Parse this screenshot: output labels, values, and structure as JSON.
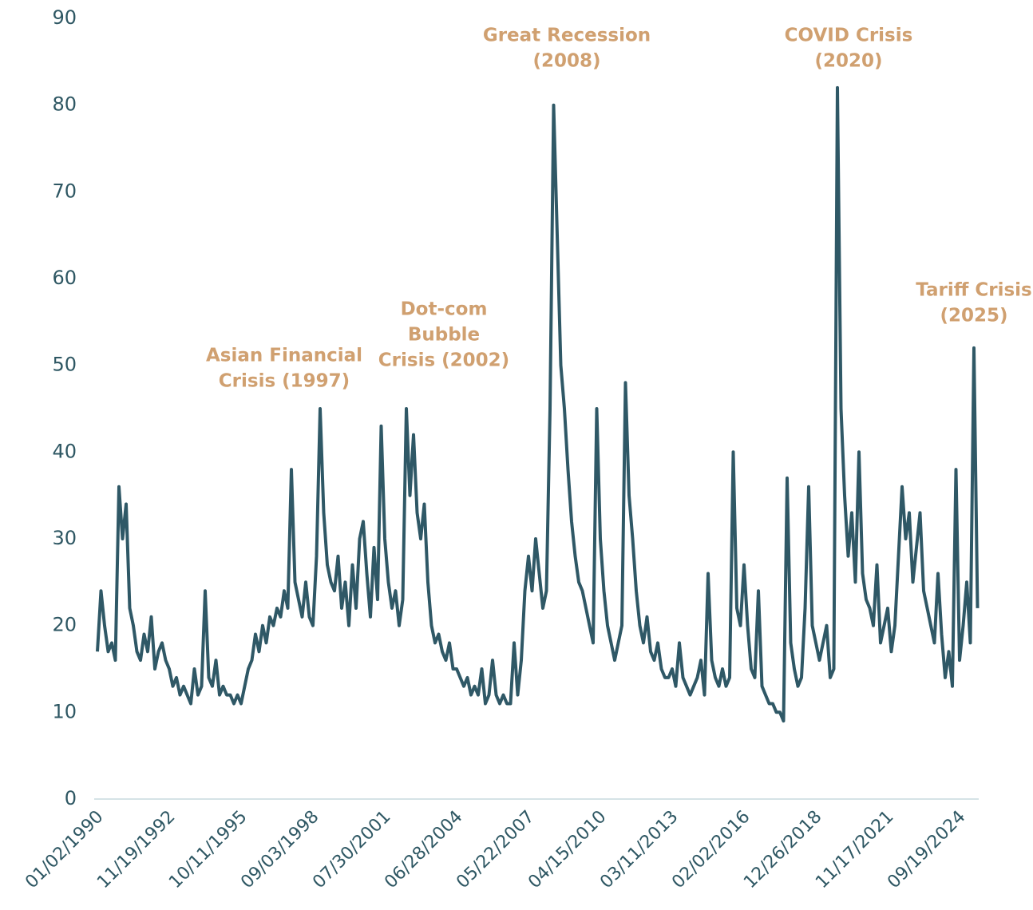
{
  "chart_data": {
    "type": "line",
    "color": "#2f5866",
    "annotation_color": "#d0a070",
    "axis_color": "#2e5763",
    "ylim": [
      0,
      90
    ],
    "yticks": [
      0,
      10,
      20,
      30,
      40,
      50,
      60,
      70,
      80,
      90
    ],
    "annotations": [
      {
        "lines": [
          "Asian Financial",
          "Crisis (1997)"
        ]
      },
      {
        "lines": [
          "Dot-com",
          "Bubble",
          "Crisis (2002)"
        ]
      },
      {
        "lines": [
          "Great Recession",
          "(2008)"
        ]
      },
      {
        "lines": [
          "COVID Crisis",
          "(2020)"
        ]
      },
      {
        "lines": [
          "Tariff Crisis",
          "(2025)"
        ]
      }
    ],
    "categories": [
      "01/02/1990",
      null,
      null,
      null,
      null,
      null,
      null,
      null,
      null,
      null,
      null,
      null,
      null,
      null,
      null,
      null,
      null,
      null,
      null,
      null,
      "11/19/1992",
      null,
      null,
      null,
      null,
      null,
      null,
      null,
      null,
      null,
      null,
      null,
      null,
      null,
      null,
      null,
      null,
      null,
      null,
      null,
      "10/11/1995",
      null,
      null,
      null,
      null,
      null,
      null,
      null,
      null,
      null,
      null,
      null,
      null,
      null,
      null,
      null,
      null,
      null,
      null,
      null,
      "09/03/1998",
      null,
      null,
      null,
      null,
      null,
      null,
      null,
      null,
      null,
      null,
      null,
      null,
      null,
      null,
      null,
      null,
      null,
      null,
      null,
      "07/30/2001",
      null,
      null,
      null,
      null,
      null,
      null,
      null,
      null,
      null,
      null,
      null,
      null,
      null,
      null,
      null,
      null,
      null,
      null,
      null,
      "06/28/2004",
      null,
      null,
      null,
      null,
      null,
      null,
      null,
      null,
      null,
      null,
      null,
      null,
      null,
      null,
      null,
      null,
      null,
      null,
      null,
      "05/22/2007",
      null,
      null,
      null,
      null,
      null,
      null,
      null,
      null,
      null,
      null,
      null,
      null,
      null,
      null,
      null,
      null,
      null,
      null,
      null,
      "04/15/2010",
      null,
      null,
      null,
      null,
      null,
      null,
      null,
      null,
      null,
      null,
      null,
      null,
      null,
      null,
      null,
      null,
      null,
      null,
      null,
      "03/11/2013",
      null,
      null,
      null,
      null,
      null,
      null,
      null,
      null,
      null,
      null,
      null,
      null,
      null,
      null,
      null,
      null,
      null,
      null,
      null,
      "02/02/2016",
      null,
      null,
      null,
      null,
      null,
      null,
      null,
      null,
      null,
      null,
      null,
      null,
      null,
      null,
      null,
      null,
      null,
      null,
      null,
      "12/26/2018",
      null,
      null,
      null,
      null,
      null,
      null,
      null,
      null,
      null,
      null,
      null,
      null,
      null,
      null,
      null,
      null,
      null,
      null,
      null,
      "11/17/2021",
      null,
      null,
      null,
      null,
      null,
      null,
      null,
      null,
      null,
      null,
      null,
      null,
      null,
      null,
      null,
      null,
      null,
      null,
      null,
      "09/19/2024",
      null,
      null,
      null,
      null,
      null
    ],
    "values": [
      17,
      24,
      20,
      17,
      18,
      16,
      36,
      30,
      34,
      22,
      20,
      17,
      16,
      19,
      17,
      21,
      15,
      17,
      18,
      16,
      15,
      13,
      14,
      12,
      13,
      12,
      11,
      15,
      12,
      13,
      24,
      14,
      13,
      16,
      12,
      13,
      12,
      12,
      11,
      12,
      11,
      13,
      15,
      16,
      19,
      17,
      20,
      18,
      21,
      20,
      22,
      21,
      24,
      22,
      38,
      25,
      23,
      21,
      25,
      21,
      20,
      28,
      45,
      33,
      27,
      25,
      24,
      28,
      22,
      25,
      20,
      27,
      22,
      30,
      32,
      26,
      21,
      29,
      23,
      43,
      30,
      25,
      22,
      24,
      20,
      23,
      45,
      35,
      42,
      33,
      30,
      34,
      25,
      20,
      18,
      19,
      17,
      16,
      18,
      15,
      15,
      14,
      13,
      14,
      12,
      13,
      12,
      15,
      11,
      12,
      16,
      12,
      11,
      12,
      11,
      11,
      18,
      12,
      16,
      24,
      28,
      24,
      30,
      26,
      22,
      24,
      45,
      80,
      65,
      50,
      45,
      38,
      32,
      28,
      25,
      24,
      22,
      20,
      18,
      45,
      30,
      24,
      20,
      18,
      16,
      18,
      20,
      48,
      35,
      30,
      24,
      20,
      18,
      21,
      17,
      16,
      18,
      15,
      14,
      14,
      15,
      13,
      18,
      14,
      13,
      12,
      13,
      14,
      16,
      12,
      26,
      16,
      14,
      13,
      15,
      13,
      14,
      40,
      22,
      20,
      27,
      20,
      15,
      14,
      24,
      13,
      12,
      11,
      11,
      10,
      10,
      9,
      37,
      18,
      15,
      13,
      14,
      22,
      36,
      20,
      18,
      16,
      18,
      20,
      14,
      15,
      82,
      45,
      35,
      28,
      33,
      25,
      40,
      26,
      23,
      22,
      20,
      27,
      18,
      20,
      22,
      17,
      20,
      28,
      36,
      30,
      33,
      25,
      29,
      33,
      24,
      22,
      20,
      18,
      26,
      19,
      14,
      17,
      13,
      38,
      16,
      20,
      25,
      18,
      52,
      22
    ]
  }
}
